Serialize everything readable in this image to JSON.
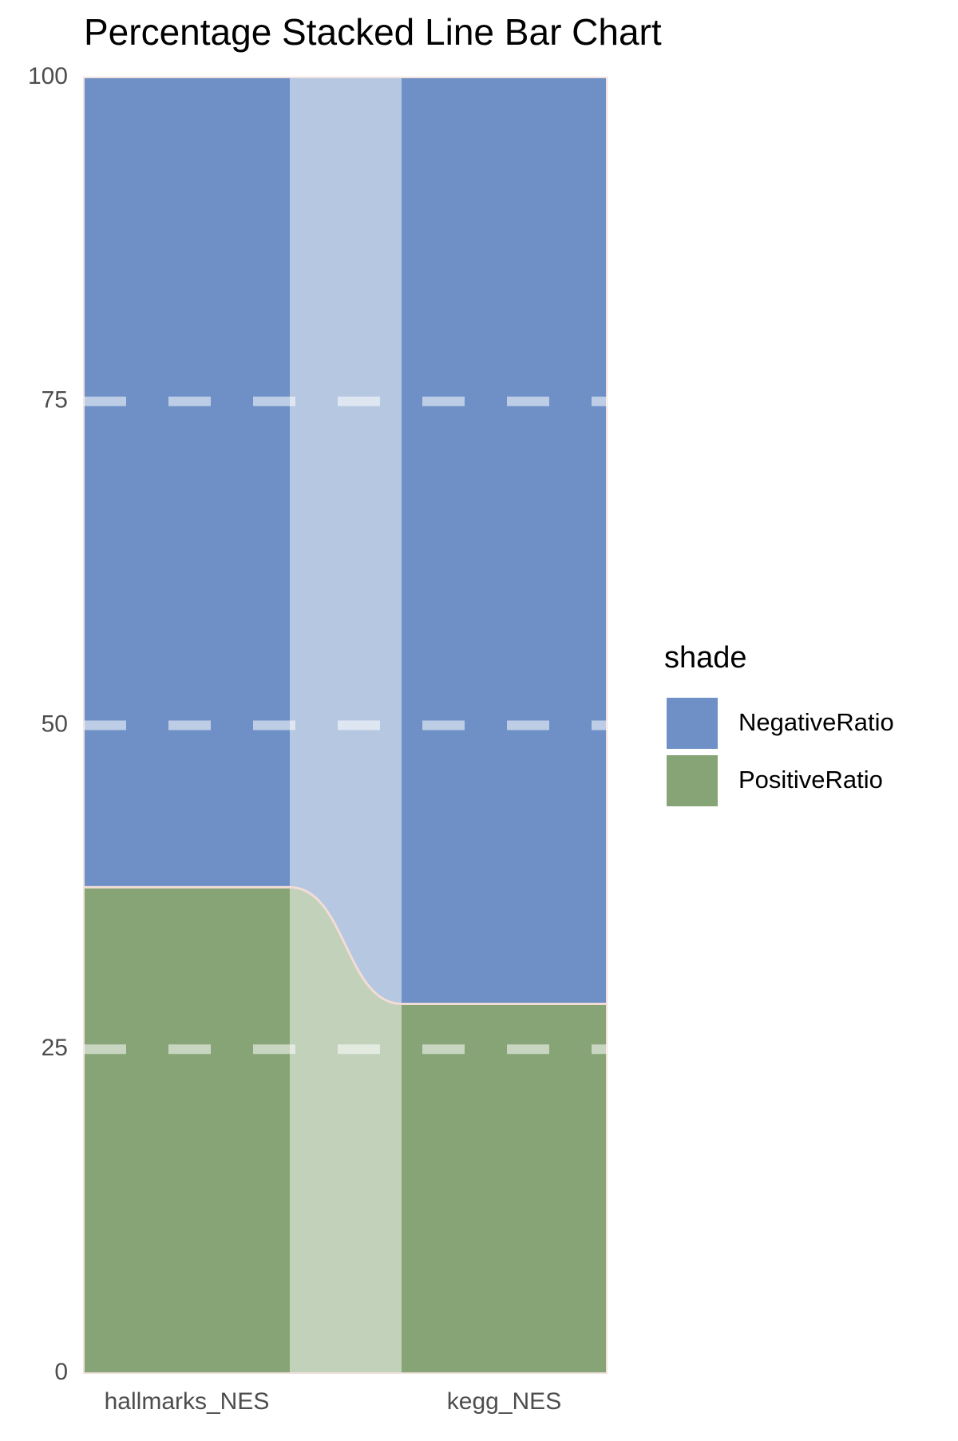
{
  "chart_data": {
    "type": "bar",
    "stacked": true,
    "title": "Percentage Stacked Line Bar Chart",
    "categories": [
      "hallmarks_NES",
      "kegg_NES"
    ],
    "series": [
      {
        "name": "NegativeRatio",
        "color": "#6e90c6",
        "values": [
          62.5,
          71.5
        ]
      },
      {
        "name": "PositiveRatio",
        "color": "#86a476",
        "values": [
          37.5,
          28.5
        ]
      }
    ],
    "ylim": [
      0,
      100
    ],
    "yticks": [
      0,
      25,
      50,
      75,
      100
    ],
    "grid": true,
    "legend_title": "shade",
    "legend_position": "right"
  }
}
